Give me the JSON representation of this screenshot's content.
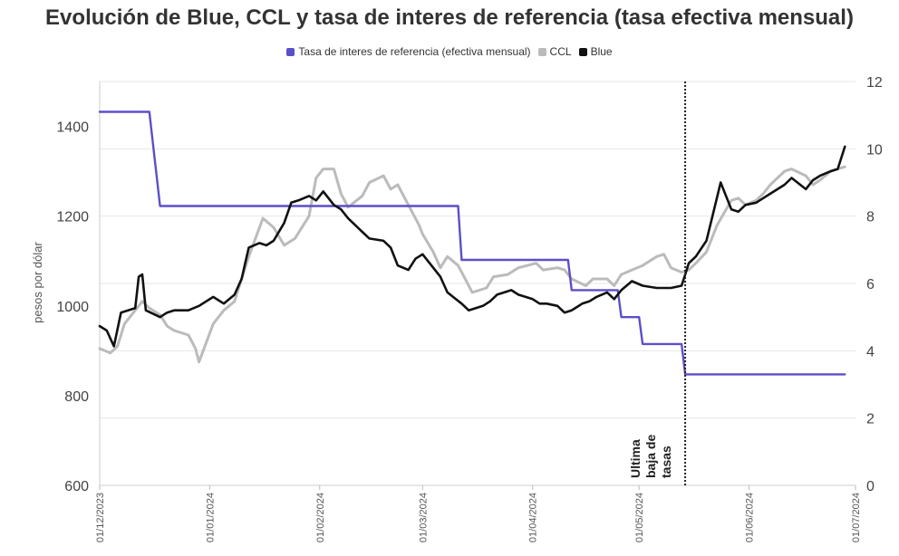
{
  "chart_data": {
    "type": "line",
    "title": "Evolución de Blue, CCL y tasa de interes de referencia (tasa efectiva mensual)",
    "ylabel": "pesos por dólar",
    "y2label": "",
    "ylim": [
      600,
      1500
    ],
    "y2lim": [
      0,
      12
    ],
    "yticks": [
      "600",
      "800",
      "1000",
      "1200",
      "1400"
    ],
    "y2ticks": [
      "0",
      "2",
      "4",
      "6",
      "8",
      "10",
      "12"
    ],
    "xlim": [
      "2023-12-01",
      "2024-07-01"
    ],
    "xticks": [
      "01/12/2023",
      "01/01/2024",
      "01/02/2024",
      "01/03/2024",
      "01/04/2024",
      "01/05/2024",
      "01/06/2024",
      "01/07/2024"
    ],
    "grid": true,
    "legend_position": "top-center",
    "annotation": {
      "date": "2024-05-14",
      "lines": [
        "Ultima",
        "baja de",
        "tasas"
      ]
    },
    "series": [
      {
        "name": "Tasa de interes de referencia (efectiva mensual)",
        "axis": "right",
        "color": "#5b4fc9",
        "step": true,
        "points": [
          [
            "2023-12-01",
            11.1
          ],
          [
            "2023-12-15",
            11.1
          ],
          [
            "2023-12-18",
            8.3
          ],
          [
            "2024-03-11",
            8.3
          ],
          [
            "2024-03-12",
            6.7
          ],
          [
            "2024-04-11",
            6.7
          ],
          [
            "2024-04-12",
            5.8
          ],
          [
            "2024-04-25",
            5.8
          ],
          [
            "2024-04-26",
            5.0
          ],
          [
            "2024-05-01",
            5.0
          ],
          [
            "2024-05-02",
            4.2
          ],
          [
            "2024-05-13",
            4.2
          ],
          [
            "2024-05-14",
            3.3
          ],
          [
            "2024-06-28",
            3.3
          ]
        ]
      },
      {
        "name": "CCL",
        "axis": "left",
        "color": "#bbbbbb",
        "step": false,
        "points": [
          [
            "2023-12-01",
            905
          ],
          [
            "2023-12-04",
            895
          ],
          [
            "2023-12-06",
            910
          ],
          [
            "2023-12-08",
            960
          ],
          [
            "2023-12-11",
            990
          ],
          [
            "2023-12-13",
            1010
          ],
          [
            "2023-12-15",
            995
          ],
          [
            "2023-12-18",
            980
          ],
          [
            "2023-12-20",
            955
          ],
          [
            "2023-12-22",
            945
          ],
          [
            "2023-12-26",
            935
          ],
          [
            "2023-12-28",
            905
          ],
          [
            "2023-12-29",
            875
          ],
          [
            "2024-01-02",
            960
          ],
          [
            "2024-01-05",
            990
          ],
          [
            "2024-01-08",
            1010
          ],
          [
            "2024-01-12",
            1110
          ],
          [
            "2024-01-16",
            1195
          ],
          [
            "2024-01-19",
            1175
          ],
          [
            "2024-01-22",
            1135
          ],
          [
            "2024-01-25",
            1150
          ],
          [
            "2024-01-29",
            1200
          ],
          [
            "2024-01-31",
            1285
          ],
          [
            "2024-02-02",
            1305
          ],
          [
            "2024-02-05",
            1305
          ],
          [
            "2024-02-07",
            1250
          ],
          [
            "2024-02-09",
            1220
          ],
          [
            "2024-02-13",
            1245
          ],
          [
            "2024-02-15",
            1275
          ],
          [
            "2024-02-19",
            1290
          ],
          [
            "2024-02-21",
            1260
          ],
          [
            "2024-02-23",
            1270
          ],
          [
            "2024-02-26",
            1225
          ],
          [
            "2024-02-29",
            1180
          ],
          [
            "2024-03-01",
            1160
          ],
          [
            "2024-03-04",
            1120
          ],
          [
            "2024-03-06",
            1085
          ],
          [
            "2024-03-08",
            1110
          ],
          [
            "2024-03-11",
            1090
          ],
          [
            "2024-03-13",
            1060
          ],
          [
            "2024-03-15",
            1030
          ],
          [
            "2024-03-19",
            1040
          ],
          [
            "2024-03-21",
            1065
          ],
          [
            "2024-03-25",
            1070
          ],
          [
            "2024-03-28",
            1085
          ],
          [
            "2024-04-02",
            1095
          ],
          [
            "2024-04-04",
            1080
          ],
          [
            "2024-04-08",
            1085
          ],
          [
            "2024-04-10",
            1080
          ],
          [
            "2024-04-12",
            1060
          ],
          [
            "2024-04-16",
            1045
          ],
          [
            "2024-04-18",
            1060
          ],
          [
            "2024-04-22",
            1060
          ],
          [
            "2024-04-24",
            1045
          ],
          [
            "2024-04-26",
            1070
          ],
          [
            "2024-04-29",
            1080
          ],
          [
            "2024-05-02",
            1090
          ],
          [
            "2024-05-06",
            1110
          ],
          [
            "2024-05-08",
            1115
          ],
          [
            "2024-05-10",
            1085
          ],
          [
            "2024-05-13",
            1075
          ],
          [
            "2024-05-15",
            1080
          ],
          [
            "2024-05-17",
            1095
          ],
          [
            "2024-05-20",
            1120
          ],
          [
            "2024-05-23",
            1180
          ],
          [
            "2024-05-27",
            1235
          ],
          [
            "2024-05-29",
            1240
          ],
          [
            "2024-05-31",
            1225
          ],
          [
            "2024-06-03",
            1235
          ],
          [
            "2024-06-05",
            1250
          ],
          [
            "2024-06-07",
            1270
          ],
          [
            "2024-06-11",
            1300
          ],
          [
            "2024-06-13",
            1305
          ],
          [
            "2024-06-17",
            1290
          ],
          [
            "2024-06-19",
            1270
          ],
          [
            "2024-06-21",
            1280
          ],
          [
            "2024-06-24",
            1300
          ],
          [
            "2024-06-26",
            1305
          ],
          [
            "2024-06-28",
            1310
          ]
        ]
      },
      {
        "name": "Blue",
        "axis": "left",
        "color": "#111111",
        "step": false,
        "points": [
          [
            "2023-12-01",
            955
          ],
          [
            "2023-12-03",
            945
          ],
          [
            "2023-12-05",
            910
          ],
          [
            "2023-12-07",
            985
          ],
          [
            "2023-12-11",
            995
          ],
          [
            "2023-12-12",
            1065
          ],
          [
            "2023-12-13",
            1070
          ],
          [
            "2023-12-14",
            990
          ],
          [
            "2023-12-18",
            975
          ],
          [
            "2023-12-20",
            985
          ],
          [
            "2023-12-22",
            990
          ],
          [
            "2023-12-26",
            990
          ],
          [
            "2023-12-29",
            1000
          ],
          [
            "2024-01-02",
            1020
          ],
          [
            "2024-01-05",
            1005
          ],
          [
            "2024-01-08",
            1025
          ],
          [
            "2024-01-10",
            1060
          ],
          [
            "2024-01-12",
            1130
          ],
          [
            "2024-01-15",
            1140
          ],
          [
            "2024-01-17",
            1135
          ],
          [
            "2024-01-19",
            1145
          ],
          [
            "2024-01-22",
            1185
          ],
          [
            "2024-01-24",
            1230
          ],
          [
            "2024-01-26",
            1235
          ],
          [
            "2024-01-29",
            1245
          ],
          [
            "2024-01-31",
            1235
          ],
          [
            "2024-02-02",
            1255
          ],
          [
            "2024-02-05",
            1225
          ],
          [
            "2024-02-07",
            1215
          ],
          [
            "2024-02-09",
            1195
          ],
          [
            "2024-02-13",
            1165
          ],
          [
            "2024-02-15",
            1150
          ],
          [
            "2024-02-19",
            1145
          ],
          [
            "2024-02-21",
            1130
          ],
          [
            "2024-02-23",
            1090
          ],
          [
            "2024-02-26",
            1080
          ],
          [
            "2024-02-28",
            1105
          ],
          [
            "2024-03-01",
            1115
          ],
          [
            "2024-03-04",
            1085
          ],
          [
            "2024-03-06",
            1065
          ],
          [
            "2024-03-08",
            1030
          ],
          [
            "2024-03-12",
            1005
          ],
          [
            "2024-03-14",
            990
          ],
          [
            "2024-03-18",
            1000
          ],
          [
            "2024-03-20",
            1010
          ],
          [
            "2024-03-22",
            1025
          ],
          [
            "2024-03-26",
            1035
          ],
          [
            "2024-03-28",
            1025
          ],
          [
            "2024-04-01",
            1015
          ],
          [
            "2024-04-03",
            1005
          ],
          [
            "2024-04-05",
            1005
          ],
          [
            "2024-04-08",
            1000
          ],
          [
            "2024-04-10",
            985
          ],
          [
            "2024-04-12",
            990
          ],
          [
            "2024-04-15",
            1005
          ],
          [
            "2024-04-17",
            1010
          ],
          [
            "2024-04-19",
            1020
          ],
          [
            "2024-04-22",
            1030
          ],
          [
            "2024-04-24",
            1015
          ],
          [
            "2024-04-26",
            1035
          ],
          [
            "2024-04-29",
            1055
          ],
          [
            "2024-05-02",
            1045
          ],
          [
            "2024-05-06",
            1040
          ],
          [
            "2024-05-08",
            1040
          ],
          [
            "2024-05-10",
            1040
          ],
          [
            "2024-05-13",
            1045
          ],
          [
            "2024-05-14",
            1070
          ],
          [
            "2024-05-15",
            1095
          ],
          [
            "2024-05-17",
            1110
          ],
          [
            "2024-05-20",
            1145
          ],
          [
            "2024-05-22",
            1210
          ],
          [
            "2024-05-24",
            1275
          ],
          [
            "2024-05-27",
            1215
          ],
          [
            "2024-05-29",
            1210
          ],
          [
            "2024-05-31",
            1225
          ],
          [
            "2024-06-03",
            1230
          ],
          [
            "2024-06-05",
            1240
          ],
          [
            "2024-06-07",
            1250
          ],
          [
            "2024-06-11",
            1270
          ],
          [
            "2024-06-13",
            1285
          ],
          [
            "2024-06-17",
            1260
          ],
          [
            "2024-06-19",
            1280
          ],
          [
            "2024-06-21",
            1290
          ],
          [
            "2024-06-24",
            1300
          ],
          [
            "2024-06-26",
            1305
          ],
          [
            "2024-06-28",
            1355
          ]
        ]
      }
    ]
  }
}
